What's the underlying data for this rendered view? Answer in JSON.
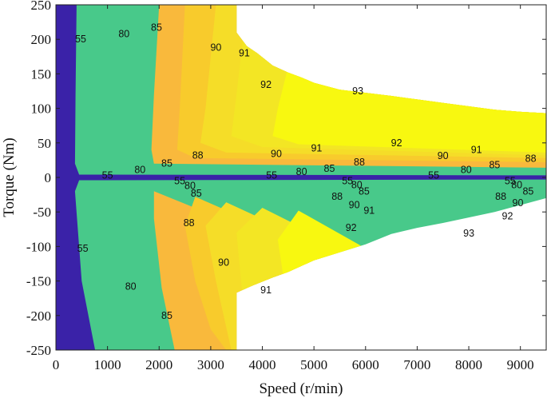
{
  "chart_data": {
    "type": "contour",
    "title": "",
    "xlabel": "Speed (r/min)",
    "ylabel": "Torque (Nm)",
    "xlim": [
      0,
      9500
    ],
    "ylim": [
      -250,
      250
    ],
    "x_ticks": [
      "0",
      "1000",
      "2000",
      "3000",
      "4000",
      "5000",
      "6000",
      "7000",
      "8000",
      "9000"
    ],
    "y_ticks": [
      "250",
      "200",
      "150",
      "100",
      "50",
      "0",
      "-50",
      "-100",
      "-150",
      "-200",
      "-250"
    ],
    "grid": false,
    "legend": "none",
    "efficiency_levels": [
      55,
      80,
      85,
      88,
      90,
      91,
      92,
      93
    ],
    "level_colors": {
      "below_55": "#3a22a8",
      "55_to_80": "#48c98a",
      "80_to_85": "#f9b93c",
      "85_to_88": "#f8cb2c",
      "88_to_90": "#f5dd28",
      "90_to_92": "#f3e624",
      "92_plus": "#f8f810",
      "background": "#ffffff"
    },
    "boundaries": {
      "outer_upper": [
        [
          3500,
          250
        ],
        [
          3500,
          210
        ],
        [
          3700,
          190
        ],
        [
          3900,
          180
        ],
        [
          4200,
          162
        ],
        [
          4500,
          152
        ],
        [
          4750,
          145
        ],
        [
          5000,
          137
        ],
        [
          5500,
          127
        ],
        [
          6500,
          118
        ],
        [
          7000,
          113
        ],
        [
          7500,
          108
        ],
        [
          8000,
          103
        ],
        [
          8500,
          98
        ],
        [
          9000,
          95
        ],
        [
          9500,
          93
        ]
      ],
      "outer_lower": [
        [
          9500,
          -30
        ],
        [
          9000,
          -40
        ],
        [
          8500,
          -50
        ],
        [
          8000,
          -58
        ],
        [
          7500,
          -66
        ],
        [
          7000,
          -73
        ],
        [
          6500,
          -82
        ],
        [
          6000,
          -97
        ],
        [
          5000,
          -120
        ],
        [
          4500,
          -137
        ],
        [
          4200,
          -145
        ],
        [
          3800,
          -157
        ],
        [
          3500,
          -167
        ],
        [
          3500,
          -250
        ]
      ],
      "c55_upper": [
        [
          1500,
          250
        ],
        [
          1420,
          100
        ],
        [
          1390,
          30
        ],
        [
          1350,
          12
        ],
        [
          9500,
          7
        ]
      ],
      "c55_lower": [
        [
          1350,
          -12
        ],
        [
          1390,
          -30
        ],
        [
          1430,
          -100
        ],
        [
          1700,
          -250
        ]
      ],
      "c80_upper": [
        [
          2000,
          250
        ],
        [
          1900,
          120
        ],
        [
          1850,
          40
        ],
        [
          1900,
          20
        ],
        [
          9500,
          14
        ]
      ],
      "c80_lower": [
        [
          1900,
          -20
        ],
        [
          1900,
          -60
        ],
        [
          2050,
          -160
        ],
        [
          2300,
          -250
        ]
      ],
      "c85_upper": [
        [
          2500,
          250
        ],
        [
          2400,
          100
        ],
        [
          2350,
          40
        ],
        [
          2700,
          28
        ],
        [
          9500,
          22
        ]
      ],
      "c85_lower": [
        [
          2700,
          -28
        ],
        [
          2500,
          -70
        ],
        [
          2700,
          -150
        ],
        [
          3000,
          -220
        ],
        [
          3300,
          -250
        ]
      ],
      "c88_upper": [
        [
          3100,
          250
        ],
        [
          2900,
          100
        ],
        [
          2800,
          50
        ],
        [
          3300,
          36
        ],
        [
          9500,
          28
        ]
      ],
      "c88_lower": [
        [
          3300,
          -36
        ],
        [
          2900,
          -70
        ],
        [
          3100,
          -150
        ],
        [
          3400,
          -250
        ]
      ],
      "c90_upper": [
        [
          3700,
          250
        ],
        [
          3500,
          120
        ],
        [
          3400,
          60
        ],
        [
          4000,
          44
        ],
        [
          9500,
          32
        ]
      ],
      "c90_lower": [
        [
          4000,
          -44
        ],
        [
          3500,
          -80
        ],
        [
          3600,
          -160
        ],
        [
          3900,
          -250
        ]
      ],
      "c92_upper": [
        [
          4800,
          250
        ],
        [
          4300,
          100
        ],
        [
          4200,
          60
        ],
        [
          4700,
          48
        ],
        [
          9500,
          36
        ]
      ],
      "c92_lower": [
        [
          4700,
          -48
        ],
        [
          4300,
          -90
        ],
        [
          4500,
          -190
        ],
        [
          5000,
          -250
        ]
      ],
      "c93_upper": [
        [
          5200,
          250
        ],
        [
          5400,
          120
        ],
        [
          5800,
          70
        ],
        [
          9500,
          45
        ]
      ],
      "c93_lower": [
        [
          9500,
          -45
        ],
        [
          5800,
          -70
        ],
        [
          5400,
          -130
        ],
        [
          5200,
          -250
        ]
      ],
      "low_band_upper": [
        [
          0,
          250
        ],
        [
          400,
          250
        ],
        [
          380,
          120
        ],
        [
          370,
          20
        ],
        [
          450,
          4
        ],
        [
          9500,
          3
        ]
      ],
      "low_band_lower": [
        [
          9500,
          -3
        ],
        [
          450,
          -4
        ],
        [
          370,
          -20
        ],
        [
          500,
          -150
        ],
        [
          760,
          -250
        ],
        [
          0,
          -250
        ]
      ]
    },
    "contour_labels": [
      {
        "text": "55",
        "x": 480,
        "y": 200
      },
      {
        "text": "80",
        "x": 1320,
        "y": 208
      },
      {
        "text": "85",
        "x": 1950,
        "y": 217
      },
      {
        "text": "90",
        "x": 3100,
        "y": 188
      },
      {
        "text": "91",
        "x": 3650,
        "y": 180
      },
      {
        "text": "92",
        "x": 4070,
        "y": 134
      },
      {
        "text": "93",
        "x": 5850,
        "y": 125
      },
      {
        "text": "88",
        "x": 2750,
        "y": 32
      },
      {
        "text": "90",
        "x": 4270,
        "y": 34
      },
      {
        "text": "91",
        "x": 5050,
        "y": 42
      },
      {
        "text": "92",
        "x": 6600,
        "y": 50
      },
      {
        "text": "90",
        "x": 7500,
        "y": 31
      },
      {
        "text": "91",
        "x": 8150,
        "y": 40
      },
      {
        "text": "88",
        "x": 9200,
        "y": 27
      },
      {
        "text": "85",
        "x": 2150,
        "y": 20
      },
      {
        "text": "80",
        "x": 1630,
        "y": 11
      },
      {
        "text": "55",
        "x": 1000,
        "y": 3
      },
      {
        "text": "85",
        "x": 5300,
        "y": 13
      },
      {
        "text": "80",
        "x": 4760,
        "y": 8
      },
      {
        "text": "55",
        "x": 4180,
        "y": 3
      },
      {
        "text": "88",
        "x": 5880,
        "y": 22
      },
      {
        "text": "80",
        "x": 7950,
        "y": 11
      },
      {
        "text": "55",
        "x": 7320,
        "y": 3
      },
      {
        "text": "85",
        "x": 8500,
        "y": 18
      },
      {
        "text": "55",
        "x": 2400,
        "y": -5
      },
      {
        "text": "80",
        "x": 2600,
        "y": -12
      },
      {
        "text": "85",
        "x": 2720,
        "y": -23
      },
      {
        "text": "55",
        "x": 5650,
        "y": -5
      },
      {
        "text": "80",
        "x": 5830,
        "y": -11
      },
      {
        "text": "85",
        "x": 5970,
        "y": -20
      },
      {
        "text": "88",
        "x": 5450,
        "y": -28
      },
      {
        "text": "90",
        "x": 5780,
        "y": -40
      },
      {
        "text": "91",
        "x": 6070,
        "y": -48
      },
      {
        "text": "55",
        "x": 8800,
        "y": -5
      },
      {
        "text": "80",
        "x": 8930,
        "y": -11
      },
      {
        "text": "85",
        "x": 9150,
        "y": -20
      },
      {
        "text": "88",
        "x": 8620,
        "y": -28
      },
      {
        "text": "90",
        "x": 8950,
        "y": -37
      },
      {
        "text": "92",
        "x": 8750,
        "y": -56
      },
      {
        "text": "88",
        "x": 2580,
        "y": -66
      },
      {
        "text": "92",
        "x": 5720,
        "y": -73
      },
      {
        "text": "93",
        "x": 8000,
        "y": -81
      },
      {
        "text": "55",
        "x": 520,
        "y": -103
      },
      {
        "text": "90",
        "x": 3250,
        "y": -123
      },
      {
        "text": "80",
        "x": 1450,
        "y": -158
      },
      {
        "text": "91",
        "x": 4070,
        "y": -163
      },
      {
        "text": "85",
        "x": 2150,
        "y": -200
      }
    ]
  }
}
